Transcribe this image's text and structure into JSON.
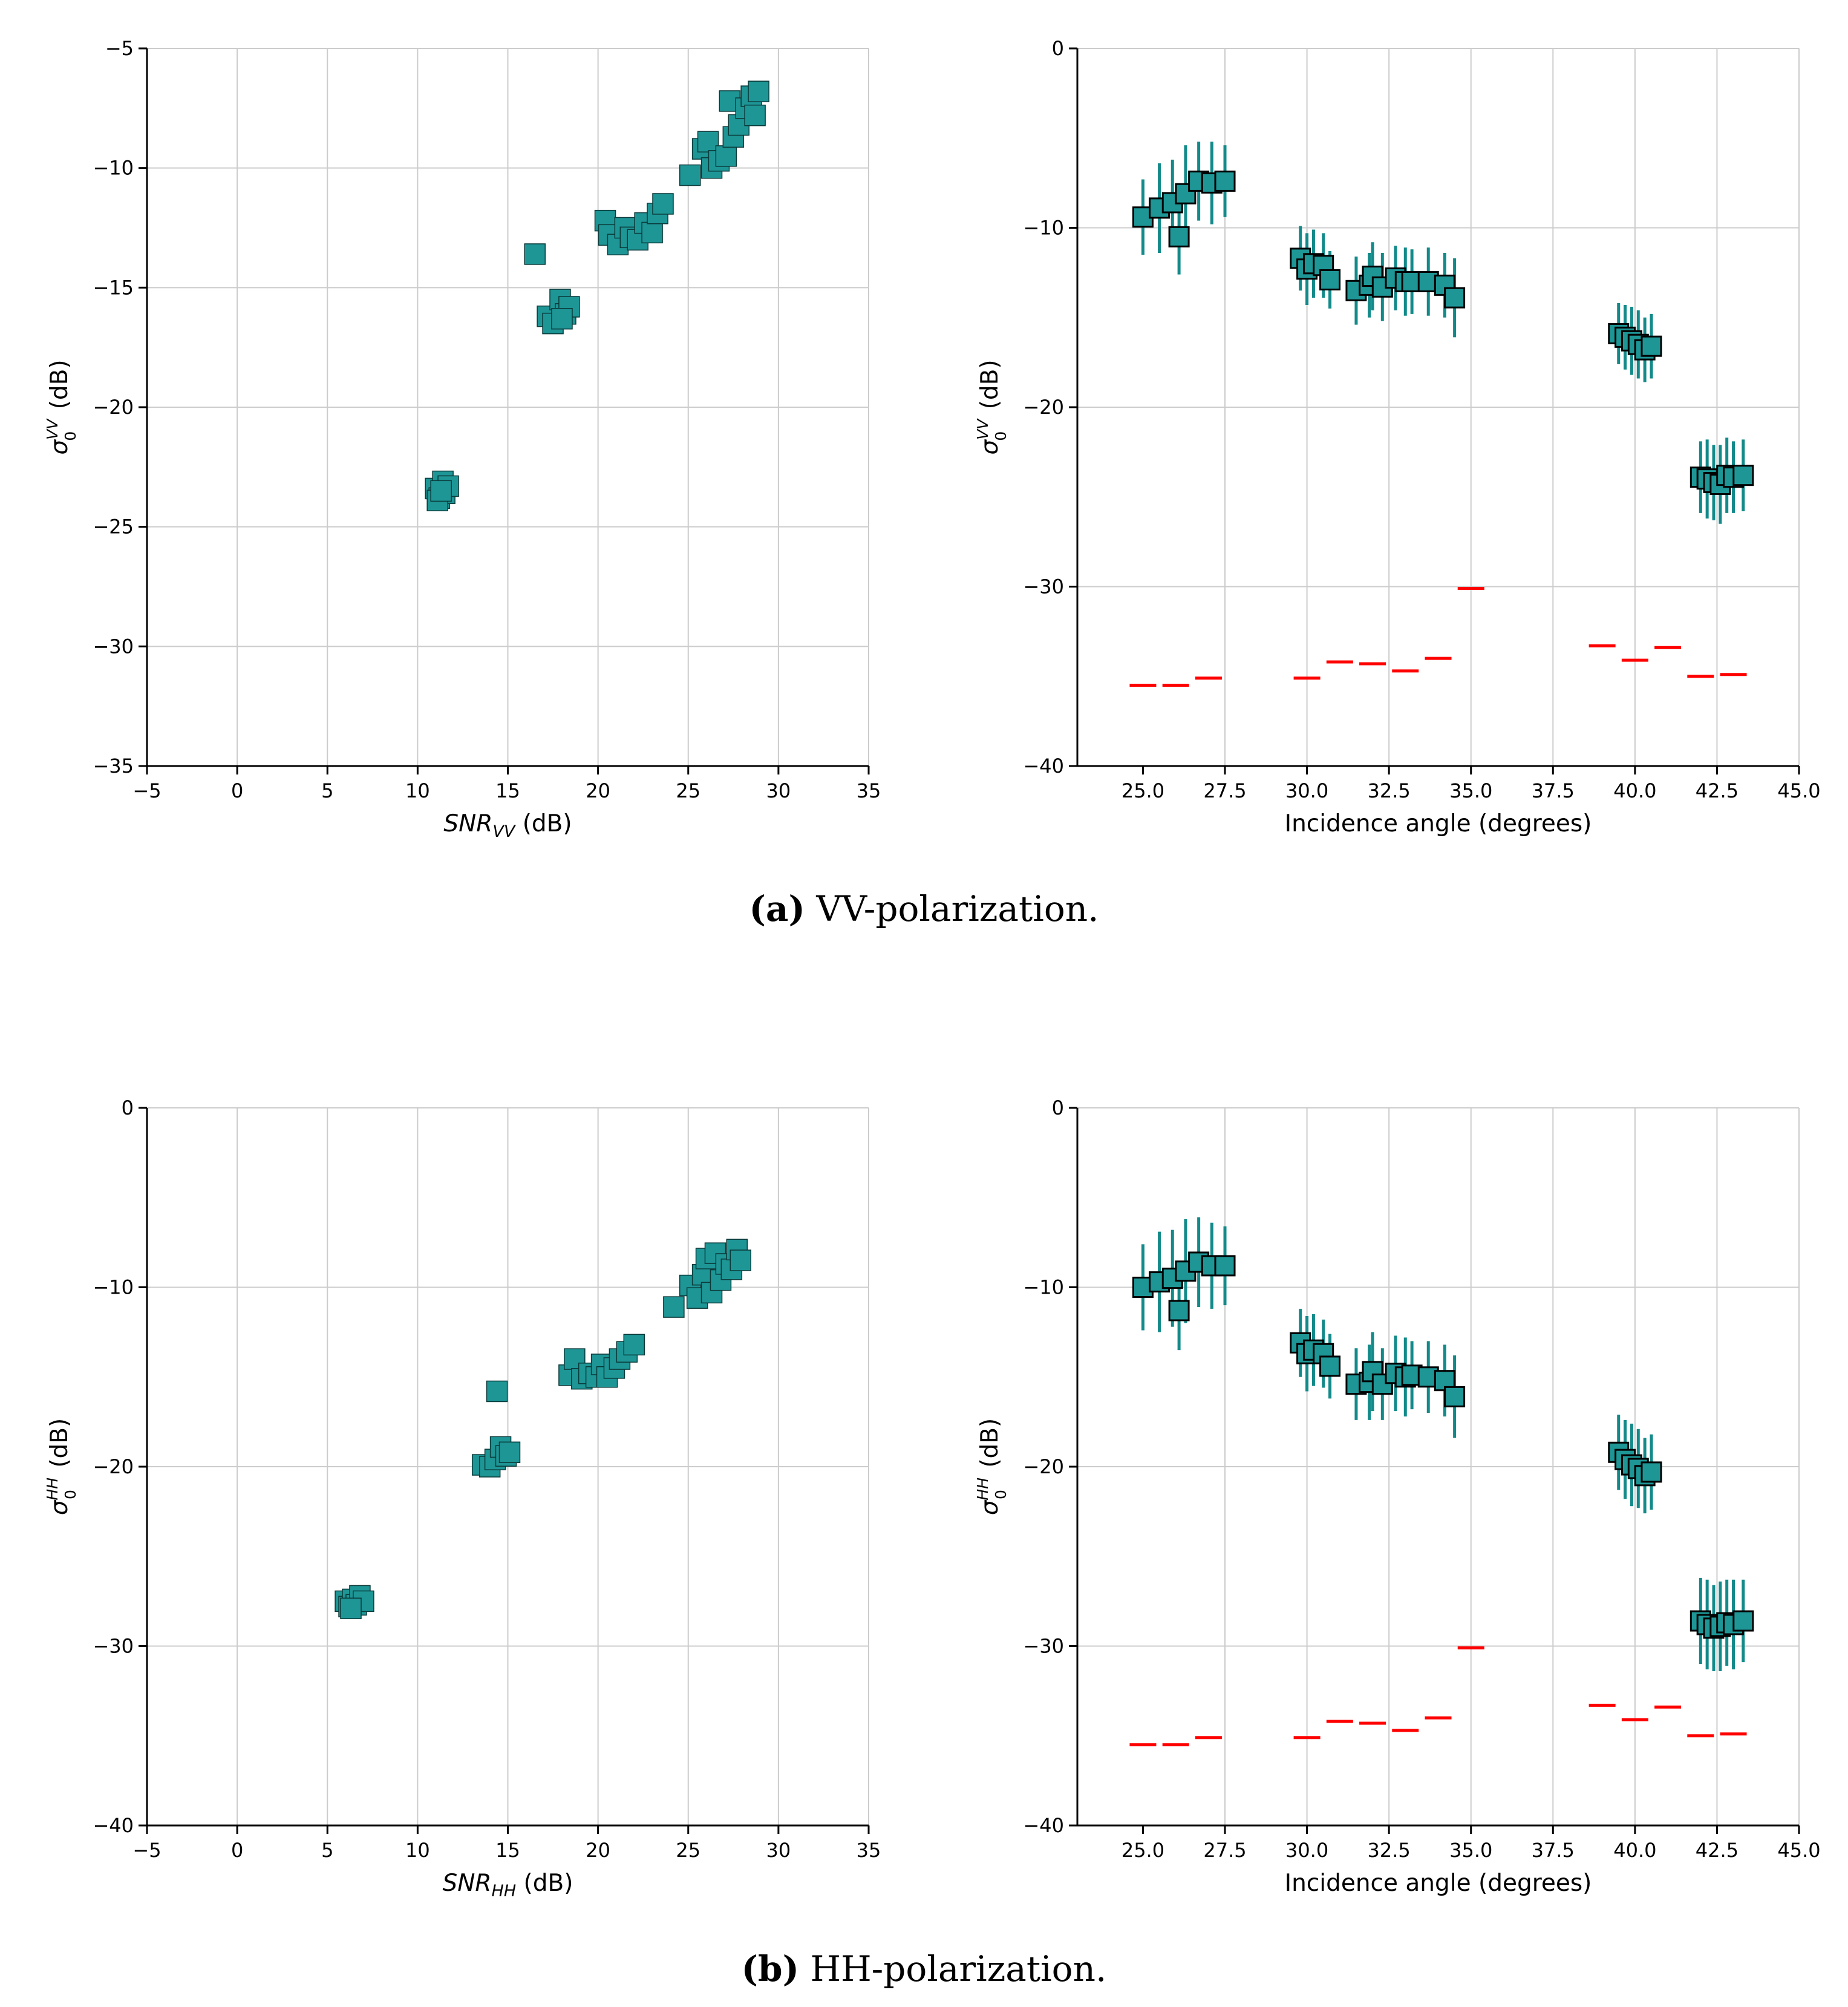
{
  "colors": {
    "marker": "#1e9696",
    "marker_edge": "#0b3a3a",
    "errbar": "#138a8a",
    "noise": "#ff0000",
    "grid": "#cccccc"
  },
  "captions": [
    {
      "tag": "(a)",
      "text": " VV-polarization."
    },
    {
      "tag": "(b)",
      "text": " HH-polarization."
    }
  ],
  "chart_data": [
    {
      "type": "scatter",
      "panel": "a-left",
      "xlabel_italic": "SNR",
      "xlabel_sub": "VV",
      "xlabel_rest": " (dB)",
      "ylabel_sigma": "σ",
      "ylabel_sup": "VV",
      "ylabel_sub": "0",
      "ylabel_rest": " (dB)",
      "xlim": [
        -5,
        35
      ],
      "ylim": [
        -35,
        -5
      ],
      "xticks": [
        -5,
        0,
        5,
        10,
        15,
        20,
        25,
        30,
        35
      ],
      "xtick_labels": [
        "−5",
        "0",
        "5",
        "10",
        "15",
        "20",
        "25",
        "30",
        "35"
      ],
      "yticks": [
        -35,
        -30,
        -25,
        -20,
        -15,
        -10,
        -5
      ],
      "ytick_labels": [
        "−35",
        "−30",
        "−25",
        "−20",
        "−15",
        "−10",
        "−5"
      ],
      "grid": true,
      "points": [
        [
          11.0,
          -23.4
        ],
        [
          11.2,
          -23.8
        ],
        [
          11.4,
          -23.1
        ],
        [
          11.5,
          -23.6
        ],
        [
          11.7,
          -23.3
        ],
        [
          11.1,
          -23.9
        ],
        [
          11.3,
          -23.5
        ],
        [
          16.5,
          -13.6
        ],
        [
          17.2,
          -16.2
        ],
        [
          17.5,
          -16.5
        ],
        [
          17.9,
          -15.5
        ],
        [
          18.2,
          -16.1
        ],
        [
          18.4,
          -15.8
        ],
        [
          18.0,
          -16.3
        ],
        [
          20.4,
          -12.2
        ],
        [
          20.6,
          -12.8
        ],
        [
          21.1,
          -13.2
        ],
        [
          21.5,
          -12.5
        ],
        [
          21.8,
          -12.9
        ],
        [
          22.2,
          -13.0
        ],
        [
          22.6,
          -12.3
        ],
        [
          23.0,
          -12.7
        ],
        [
          23.3,
          -11.9
        ],
        [
          23.6,
          -11.5
        ],
        [
          25.1,
          -10.3
        ],
        [
          25.8,
          -9.2
        ],
        [
          26.1,
          -8.9
        ],
        [
          26.3,
          -10.0
        ],
        [
          26.7,
          -9.7
        ],
        [
          27.1,
          -9.5
        ],
        [
          27.3,
          -7.2
        ],
        [
          27.5,
          -8.7
        ],
        [
          27.8,
          -8.2
        ],
        [
          28.2,
          -7.5
        ],
        [
          28.5,
          -7.0
        ],
        [
          28.7,
          -7.8
        ],
        [
          28.9,
          -6.8
        ]
      ]
    },
    {
      "type": "errorbar",
      "panel": "a-right",
      "xlabel": "Incidence angle (degrees)",
      "ylabel_sigma": "σ",
      "ylabel_sup": "VV",
      "ylabel_sub": "0",
      "ylabel_rest": " (dB)",
      "xlim": [
        23.0,
        45.0
      ],
      "ylim": [
        -40,
        0
      ],
      "xticks": [
        25.0,
        27.5,
        30.0,
        32.5,
        35.0,
        37.5,
        40.0,
        42.5,
        45.0
      ],
      "xtick_labels": [
        "25.0",
        "27.5",
        "30.0",
        "32.5",
        "35.0",
        "37.5",
        "40.0",
        "42.5",
        "45.0"
      ],
      "yticks": [
        -40,
        -30,
        -20,
        -10,
        0
      ],
      "ytick_labels": [
        "−40",
        "−30",
        "−20",
        "−10",
        "0"
      ],
      "grid": true,
      "points": [
        [
          25.0,
          -9.4,
          2.1
        ],
        [
          25.5,
          -8.9,
          2.5
        ],
        [
          25.9,
          -8.6,
          2.4
        ],
        [
          26.1,
          -10.5,
          2.1
        ],
        [
          26.3,
          -8.1,
          2.7
        ],
        [
          26.7,
          -7.4,
          2.2
        ],
        [
          27.1,
          -7.5,
          2.3
        ],
        [
          27.5,
          -7.4,
          2.0
        ],
        [
          29.8,
          -11.7,
          1.8
        ],
        [
          30.0,
          -12.3,
          2.0
        ],
        [
          30.2,
          -12.0,
          1.9
        ],
        [
          30.5,
          -12.1,
          1.8
        ],
        [
          30.7,
          -12.9,
          1.6
        ],
        [
          31.5,
          -13.5,
          1.9
        ],
        [
          31.9,
          -13.2,
          1.8
        ],
        [
          32.0,
          -12.7,
          1.9
        ],
        [
          32.3,
          -13.3,
          1.9
        ],
        [
          32.7,
          -12.8,
          1.8
        ],
        [
          33.0,
          -13.0,
          1.9
        ],
        [
          33.2,
          -13.0,
          1.8
        ],
        [
          33.7,
          -13.0,
          1.9
        ],
        [
          34.2,
          -13.2,
          1.8
        ],
        [
          34.5,
          -13.9,
          2.2
        ],
        [
          39.5,
          -15.9,
          1.7
        ],
        [
          39.7,
          -16.1,
          1.8
        ],
        [
          39.9,
          -16.3,
          1.9
        ],
        [
          40.1,
          -16.5,
          1.9
        ],
        [
          40.3,
          -16.8,
          1.8
        ],
        [
          40.5,
          -16.6,
          1.8
        ],
        [
          42.0,
          -23.9,
          2.0
        ],
        [
          42.2,
          -24.0,
          2.2
        ],
        [
          42.4,
          -24.2,
          2.1
        ],
        [
          42.6,
          -24.3,
          2.2
        ],
        [
          42.8,
          -23.8,
          2.1
        ],
        [
          43.0,
          -23.9,
          2.0
        ],
        [
          43.3,
          -23.8,
          2.0
        ]
      ],
      "noise_floor": [
        [
          25.0,
          -35.5
        ],
        [
          26.0,
          -35.5
        ],
        [
          27.0,
          -35.1
        ],
        [
          30.0,
          -35.1
        ],
        [
          31.0,
          -34.2
        ],
        [
          32.0,
          -34.3
        ],
        [
          33.0,
          -34.7
        ],
        [
          34.0,
          -34.0
        ],
        [
          35.0,
          -30.1
        ],
        [
          39.0,
          -33.3
        ],
        [
          40.0,
          -34.1
        ],
        [
          41.0,
          -33.4
        ],
        [
          42.0,
          -35.0
        ],
        [
          43.0,
          -34.9
        ]
      ]
    },
    {
      "type": "scatter",
      "panel": "b-left",
      "xlabel_italic": "SNR",
      "xlabel_sub": "HH",
      "xlabel_rest": " (dB)",
      "ylabel_sigma": "σ",
      "ylabel_sup": "HH",
      "ylabel_sub": "0",
      "ylabel_rest": " (dB)",
      "xlim": [
        -5,
        35
      ],
      "ylim": [
        -40,
        0
      ],
      "xticks": [
        -5,
        0,
        5,
        10,
        15,
        20,
        25,
        30,
        35
      ],
      "xtick_labels": [
        "−5",
        "0",
        "5",
        "10",
        "15",
        "20",
        "25",
        "30",
        "35"
      ],
      "yticks": [
        -40,
        -30,
        -20,
        -10,
        0
      ],
      "ytick_labels": [
        "−40",
        "−30",
        "−20",
        "−10",
        "0"
      ],
      "grid": true,
      "points": [
        [
          6.0,
          -27.5
        ],
        [
          6.2,
          -27.8
        ],
        [
          6.4,
          -27.4
        ],
        [
          6.6,
          -27.7
        ],
        [
          6.8,
          -27.2
        ],
        [
          7.0,
          -27.5
        ],
        [
          6.3,
          -27.9
        ],
        [
          14.4,
          -15.8
        ],
        [
          13.6,
          -19.9
        ],
        [
          14.0,
          -20.0
        ],
        [
          14.3,
          -19.6
        ],
        [
          14.6,
          -18.9
        ],
        [
          14.9,
          -19.4
        ],
        [
          15.1,
          -19.2
        ],
        [
          18.4,
          -14.9
        ],
        [
          18.7,
          -14.0
        ],
        [
          19.1,
          -15.1
        ],
        [
          19.5,
          -14.8
        ],
        [
          19.9,
          -15.0
        ],
        [
          20.2,
          -14.3
        ],
        [
          20.5,
          -15.0
        ],
        [
          20.9,
          -14.5
        ],
        [
          21.2,
          -14.0
        ],
        [
          21.6,
          -13.6
        ],
        [
          22.0,
          -13.2
        ],
        [
          24.2,
          -11.1
        ],
        [
          25.1,
          -9.9
        ],
        [
          25.5,
          -10.6
        ],
        [
          25.8,
          -9.3
        ],
        [
          26.0,
          -8.4
        ],
        [
          26.3,
          -10.3
        ],
        [
          26.5,
          -8.1
        ],
        [
          26.8,
          -9.6
        ],
        [
          27.1,
          -8.7
        ],
        [
          27.4,
          -9.0
        ],
        [
          27.7,
          -7.9
        ],
        [
          27.9,
          -8.5
        ]
      ]
    },
    {
      "type": "errorbar",
      "panel": "b-right",
      "xlabel": "Incidence angle (degrees)",
      "ylabel_sigma": "σ",
      "ylabel_sup": "HH",
      "ylabel_sub": "0",
      "ylabel_rest": " (dB)",
      "xlim": [
        23.0,
        45.0
      ],
      "ylim": [
        -40,
        0
      ],
      "xticks": [
        25.0,
        27.5,
        30.0,
        32.5,
        35.0,
        37.5,
        40.0,
        42.5,
        45.0
      ],
      "xtick_labels": [
        "25.0",
        "27.5",
        "30.0",
        "32.5",
        "35.0",
        "37.5",
        "40.0",
        "42.5",
        "45.0"
      ],
      "yticks": [
        -40,
        -30,
        -20,
        -10,
        0
      ],
      "ytick_labels": [
        "−40",
        "−30",
        "−20",
        "−10",
        "0"
      ],
      "grid": true,
      "points": [
        [
          25.0,
          -10.0,
          2.4
        ],
        [
          25.5,
          -9.7,
          2.8
        ],
        [
          25.9,
          -9.5,
          2.7
        ],
        [
          26.1,
          -11.3,
          2.2
        ],
        [
          26.3,
          -9.1,
          2.9
        ],
        [
          26.7,
          -8.6,
          2.5
        ],
        [
          27.1,
          -8.8,
          2.4
        ],
        [
          27.5,
          -8.8,
          2.2
        ],
        [
          29.8,
          -13.1,
          1.9
        ],
        [
          30.0,
          -13.7,
          2.1
        ],
        [
          30.2,
          -13.5,
          2.0
        ],
        [
          30.5,
          -13.7,
          1.9
        ],
        [
          30.7,
          -14.4,
          1.8
        ],
        [
          31.5,
          -15.4,
          2.0
        ],
        [
          31.9,
          -15.3,
          2.1
        ],
        [
          32.0,
          -14.7,
          2.2
        ],
        [
          32.3,
          -15.4,
          2.0
        ],
        [
          32.7,
          -14.8,
          2.1
        ],
        [
          33.0,
          -15.0,
          2.2
        ],
        [
          33.2,
          -14.9,
          1.9
        ],
        [
          33.7,
          -15.0,
          2.0
        ],
        [
          34.2,
          -15.2,
          2.0
        ],
        [
          34.5,
          -16.1,
          2.3
        ],
        [
          39.5,
          -19.2,
          2.1
        ],
        [
          39.7,
          -19.6,
          2.2
        ],
        [
          39.9,
          -19.9,
          2.3
        ],
        [
          40.1,
          -20.1,
          2.2
        ],
        [
          40.3,
          -20.5,
          2.1
        ],
        [
          40.5,
          -20.3,
          2.1
        ],
        [
          42.0,
          -28.6,
          2.4
        ],
        [
          42.2,
          -28.8,
          2.5
        ],
        [
          42.4,
          -29.0,
          2.4
        ],
        [
          42.6,
          -28.9,
          2.5
        ],
        [
          42.8,
          -28.7,
          2.4
        ],
        [
          43.0,
          -28.8,
          2.5
        ],
        [
          43.3,
          -28.6,
          2.3
        ]
      ],
      "noise_floor": [
        [
          25.0,
          -35.5
        ],
        [
          26.0,
          -35.5
        ],
        [
          27.0,
          -35.1
        ],
        [
          30.0,
          -35.1
        ],
        [
          31.0,
          -34.2
        ],
        [
          32.0,
          -34.3
        ],
        [
          33.0,
          -34.7
        ],
        [
          34.0,
          -34.0
        ],
        [
          35.0,
          -30.1
        ],
        [
          39.0,
          -33.3
        ],
        [
          40.0,
          -34.1
        ],
        [
          41.0,
          -33.4
        ],
        [
          42.0,
          -35.0
        ],
        [
          43.0,
          -34.9
        ]
      ]
    }
  ]
}
